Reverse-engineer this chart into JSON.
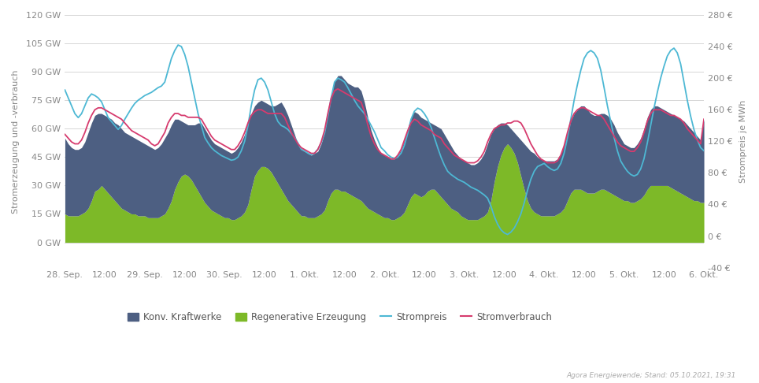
{
  "ylabel_left": "Stromerzeugung und -verbrauch",
  "ylabel_right": "Strompreis je MWh",
  "ylim_left": [
    -13.333,
    120
  ],
  "ylim_right": [
    -40,
    280
  ],
  "yticks_left": [
    0,
    15,
    30,
    45,
    60,
    75,
    90,
    105,
    120
  ],
  "yticks_right": [
    -40,
    0,
    40,
    80,
    120,
    160,
    200,
    240,
    280
  ],
  "ytick_labels_left": [
    "0 GW",
    "15 GW",
    "30 GW",
    "45 GW",
    "60 GW",
    "75 GW",
    "90 GW",
    "105 GW",
    "120 GW"
  ],
  "ytick_labels_right": [
    "-40 €",
    "0 €",
    "40 €",
    "80 €",
    "120 €",
    "160 €",
    "200 €",
    "240 €",
    "280 €"
  ],
  "color_konv": "#4d5f82",
  "color_regen": "#7db928",
  "color_preis": "#4db8d4",
  "color_verbrauch": "#d63b6e",
  "background_color": "#ffffff",
  "grid_color": "#d0d0d0",
  "watermark": "Agora Energiewende; Stand: 05.10.2021, 19:31",
  "legend_labels": [
    "Konv. Kraftwerke",
    "Regenerative Erzeugung",
    "Strompreis",
    "Stromverbrauch"
  ],
  "xtick_labels": [
    "28. Sep.",
    "12:00",
    "29. Sep.",
    "12:00",
    "30. Sep.",
    "12:00",
    "1. Okt.",
    "12:00",
    "2. Okt.",
    "12:00",
    "3. Okt.",
    "12:00",
    "4. Okt.",
    "12:00",
    "5. Okt.",
    "12:00",
    "6. Okt."
  ]
}
